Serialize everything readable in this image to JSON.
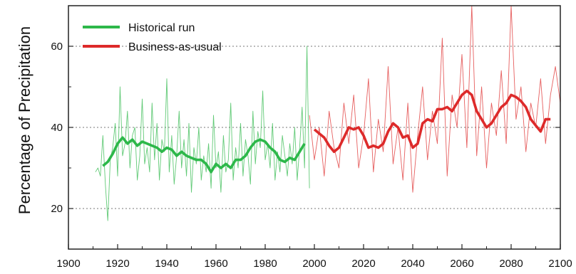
{
  "chart_data": {
    "type": "line",
    "ylabel": "Percentage of Precipitation",
    "xlabel": "",
    "xlim": [
      1900,
      2100
    ],
    "ylim": [
      10,
      70
    ],
    "x_ticks": [
      1900,
      1920,
      1940,
      1960,
      1980,
      2000,
      2020,
      2040,
      2060,
      2080,
      2100
    ],
    "y_ticks": [
      20,
      40,
      60
    ],
    "grid": "horizontal dashed at y ticks",
    "legend_position": "top-left",
    "colors": {
      "historical": "#2db84a",
      "business_as_usual": "#dd2a2a",
      "axis": "#222222",
      "grid": "#777777"
    },
    "series": [
      {
        "name": "Historical run",
        "kind": "annual",
        "x": [
          1911,
          1912,
          1913,
          1914,
          1915,
          1916,
          1917,
          1918,
          1919,
          1920,
          1921,
          1922,
          1923,
          1924,
          1925,
          1926,
          1927,
          1928,
          1929,
          1930,
          1931,
          1932,
          1933,
          1934,
          1935,
          1936,
          1937,
          1938,
          1939,
          1940,
          1941,
          1942,
          1943,
          1944,
          1945,
          1946,
          1947,
          1948,
          1949,
          1950,
          1951,
          1952,
          1953,
          1954,
          1955,
          1956,
          1957,
          1958,
          1959,
          1960,
          1961,
          1962,
          1963,
          1964,
          1965,
          1966,
          1967,
          1968,
          1969,
          1970,
          1971,
          1972,
          1973,
          1974,
          1975,
          1976,
          1977,
          1978,
          1979,
          1980,
          1981,
          1982,
          1983,
          1984,
          1985,
          1986,
          1987,
          1988,
          1989,
          1990,
          1991,
          1992,
          1993,
          1994,
          1995,
          1996,
          1997,
          1998
        ],
        "values": [
          29,
          30,
          28,
          38,
          26,
          17,
          32,
          35,
          41,
          28,
          50,
          33,
          36,
          44,
          30,
          38,
          40,
          27,
          33,
          47,
          31,
          35,
          29,
          46,
          32,
          41,
          27,
          37,
          34,
          52,
          29,
          38,
          26,
          33,
          44,
          30,
          37,
          28,
          41,
          24,
          35,
          31,
          40,
          27,
          33,
          29,
          36,
          25,
          43,
          30,
          34,
          24,
          38,
          29,
          32,
          46,
          27,
          35,
          30,
          41,
          28,
          37,
          33,
          26,
          44,
          31,
          39,
          35,
          49,
          32,
          36,
          30,
          41,
          27,
          34,
          29,
          38,
          33,
          28,
          36,
          31,
          40,
          27,
          35,
          45,
          30,
          60,
          25
        ]
      },
      {
        "name": "Historical run",
        "kind": "smoothed",
        "x": [
          1914,
          1916,
          1918,
          1920,
          1922,
          1924,
          1926,
          1928,
          1930,
          1932,
          1934,
          1936,
          1938,
          1940,
          1942,
          1944,
          1946,
          1948,
          1950,
          1952,
          1954,
          1956,
          1958,
          1960,
          1962,
          1964,
          1966,
          1968,
          1970,
          1972,
          1974,
          1976,
          1978,
          1980,
          1982,
          1984,
          1986,
          1988,
          1990,
          1992,
          1994,
          1996
        ],
        "values": [
          30.5,
          31.5,
          33.5,
          36,
          37.5,
          36,
          37,
          35.5,
          36.5,
          36,
          35.5,
          35,
          34,
          35,
          34.5,
          33,
          34,
          33,
          32.5,
          32,
          32,
          31,
          29,
          31,
          30,
          31,
          30,
          32,
          32,
          33,
          35,
          36.5,
          37,
          36.5,
          35,
          34,
          32,
          31.5,
          32.5,
          32,
          34,
          36
        ]
      },
      {
        "name": "Business-as-usual",
        "kind": "annual",
        "x": [
          1998,
          2000,
          2002,
          2004,
          2006,
          2008,
          2010,
          2012,
          2014,
          2016,
          2018,
          2020,
          2022,
          2024,
          2026,
          2028,
          2030,
          2032,
          2034,
          2036,
          2038,
          2040,
          2042,
          2044,
          2046,
          2048,
          2050,
          2052,
          2054,
          2056,
          2058,
          2060,
          2062,
          2064,
          2066,
          2068,
          2070,
          2072,
          2074,
          2076,
          2078,
          2080,
          2082,
          2084,
          2086,
          2088,
          2090,
          2092,
          2094,
          2096,
          2098,
          2100
        ],
        "values": [
          43,
          32,
          40,
          28,
          44,
          35,
          30,
          46,
          36,
          48,
          30,
          38,
          52,
          29,
          42,
          34,
          55,
          31,
          40,
          27,
          46,
          24,
          38,
          50,
          32,
          44,
          36,
          62,
          28,
          48,
          40,
          58,
          35,
          70,
          33,
          50,
          30,
          46,
          38,
          54,
          36,
          70,
          42,
          50,
          34,
          46,
          40,
          52,
          36,
          48,
          55,
          46
        ]
      },
      {
        "name": "Business-as-usual",
        "kind": "smoothed",
        "x": [
          2000,
          2002,
          2004,
          2006,
          2008,
          2010,
          2012,
          2014,
          2016,
          2018,
          2020,
          2022,
          2024,
          2026,
          2028,
          2030,
          2032,
          2034,
          2036,
          2038,
          2040,
          2042,
          2044,
          2046,
          2048,
          2050,
          2052,
          2054,
          2056,
          2058,
          2060,
          2062,
          2064,
          2066,
          2068,
          2070,
          2072,
          2074,
          2076,
          2078,
          2080,
          2082,
          2084,
          2086,
          2088,
          2090,
          2092,
          2094,
          2096
        ],
        "values": [
          39.5,
          38.5,
          37.5,
          35.5,
          34,
          35,
          37.5,
          40,
          39.5,
          40,
          38,
          35,
          35.5,
          35,
          36,
          39,
          41,
          40,
          37.5,
          38,
          35,
          36,
          41,
          42,
          41.5,
          44.5,
          44.5,
          45,
          44,
          46,
          48,
          49,
          48,
          44,
          42,
          40,
          41,
          43,
          45,
          46,
          48,
          47.5,
          46.5,
          45,
          42,
          40.5,
          39,
          42,
          42
        ]
      }
    ],
    "legend": [
      {
        "label": "Historical run",
        "color": "#2db84a"
      },
      {
        "label": "Business-as-usual",
        "color": "#dd2a2a"
      }
    ]
  }
}
